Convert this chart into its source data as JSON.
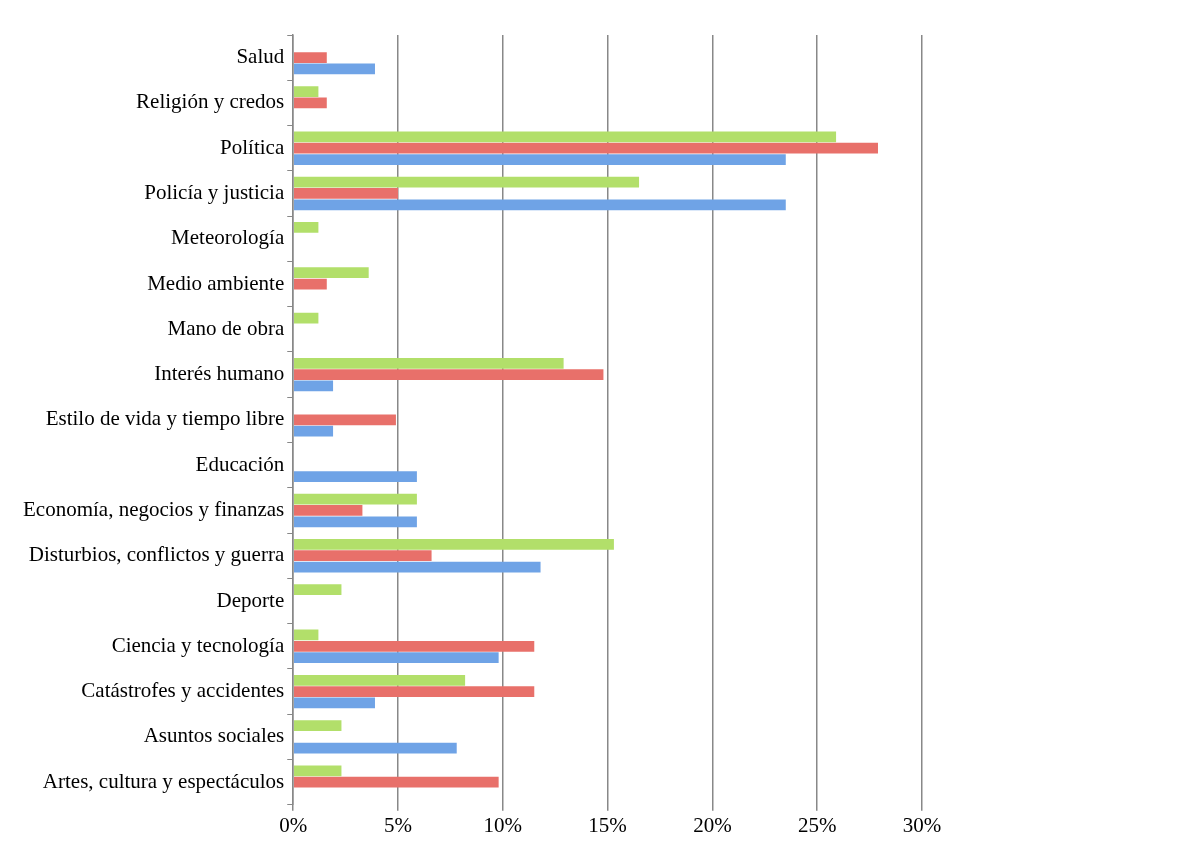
{
  "chart_data": {
    "type": "bar",
    "orientation": "horizontal",
    "categories": [
      "Salud",
      "Religión y credos",
      "Política",
      "Policía y justicia",
      "Meteorología",
      "Medio ambiente",
      "Mano de obra",
      "Interés humano",
      "Estilo de vida y tiempo libre",
      "Educación",
      "Economía, negocios y finanzas",
      "Disturbios, conflictos y guerra",
      "Deporte",
      "Ciencia y tecnología",
      "Catástrofes y accidentes",
      "Asuntos sociales",
      "Artes, cultura y espectáculos"
    ],
    "series": [
      {
        "color": "#b2df6a",
        "values": [
          0,
          1.2,
          25.9,
          16.5,
          1.2,
          3.6,
          1.2,
          12.9,
          0,
          0,
          5.9,
          15.3,
          2.3,
          1.2,
          8.2,
          2.3,
          2.3
        ]
      },
      {
        "color": "#e8706a",
        "values": [
          1.6,
          1.6,
          27.9,
          5.0,
          0,
          1.6,
          0,
          14.8,
          4.9,
          0,
          3.3,
          6.6,
          0,
          11.5,
          11.5,
          0,
          9.8
        ]
      },
      {
        "color": "#6fa3e6",
        "values": [
          3.9,
          0,
          23.5,
          23.5,
          0,
          0,
          0,
          1.9,
          1.9,
          5.9,
          5.9,
          11.8,
          0,
          9.8,
          3.9,
          7.8,
          0
        ]
      }
    ],
    "xlim": [
      0,
      30
    ],
    "xticks": [
      {
        "value": 0,
        "label": "0%"
      },
      {
        "value": 5,
        "label": "5%"
      },
      {
        "value": 10,
        "label": "10%"
      },
      {
        "value": 15,
        "label": "15%"
      },
      {
        "value": 20,
        "label": "20%"
      },
      {
        "value": 25,
        "label": "25%"
      },
      {
        "value": 30,
        "label": "30%"
      }
    ],
    "grid": "x",
    "legend": false
  }
}
